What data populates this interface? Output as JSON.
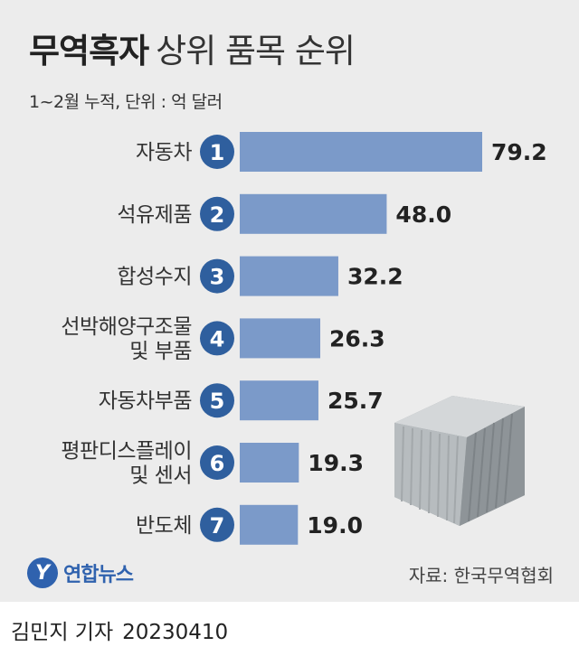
{
  "title": {
    "bold": "무역흑자",
    "light": "상위 품목 순위"
  },
  "subtitle": "1~2월 누적, 단위 : 억 달러",
  "chart_data": {
    "type": "bar",
    "orientation": "horizontal",
    "title": "무역흑자 상위 품목 순위",
    "subtitle": "1~2월 누적, 단위 : 억 달러",
    "unit": "억 달러",
    "categories": [
      [
        "자동차"
      ],
      [
        "석유제품"
      ],
      [
        "합성수지"
      ],
      [
        "선박해양구조물",
        "및 부품"
      ],
      [
        "자동차부품"
      ],
      [
        "평판디스플레이",
        "및 센서"
      ],
      [
        "반도체"
      ]
    ],
    "ranks": [
      "1",
      "2",
      "3",
      "4",
      "5",
      "6",
      "7"
    ],
    "values": [
      79.2,
      48.0,
      32.2,
      26.3,
      25.7,
      19.3,
      19.0
    ],
    "value_labels": [
      "79.2",
      "48.0",
      "32.2",
      "26.3",
      "25.7",
      "19.3",
      "19.0"
    ],
    "xlim": [
      0,
      79.2
    ],
    "grid": false,
    "bar_color": "#7b9ac9",
    "rank_badge_color": "#2f5f9e"
  },
  "logo": {
    "mark": "Y",
    "text": "연합뉴스"
  },
  "source": "자료: 한국무역협회",
  "credit": {
    "author": "김민지 기자",
    "date": "20230410"
  }
}
